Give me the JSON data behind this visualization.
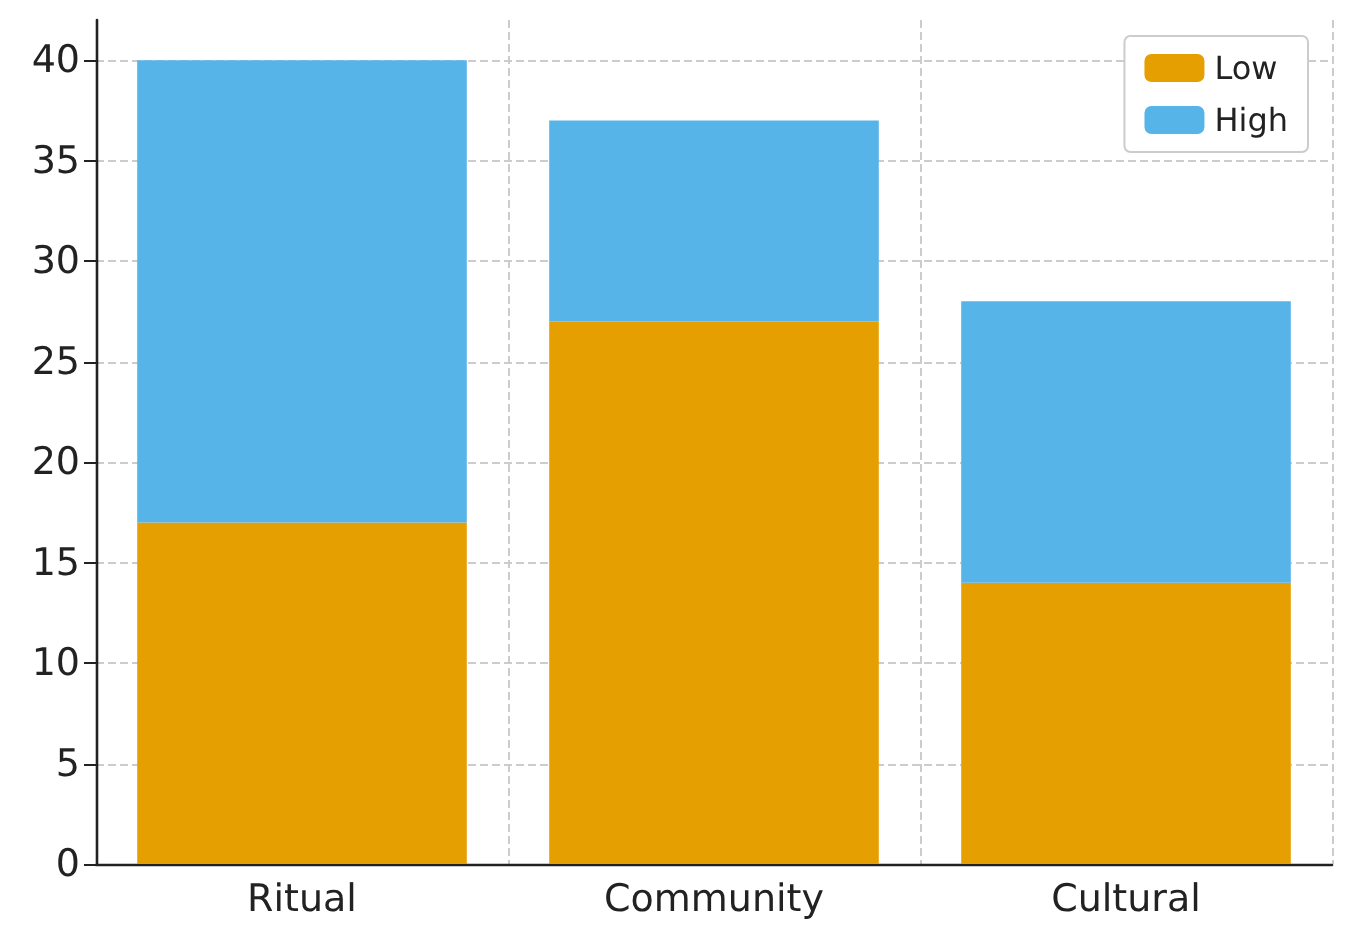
{
  "chart_data": {
    "type": "bar",
    "stacked": true,
    "categories": [
      "Ritual",
      "Community",
      "Cultural"
    ],
    "series": [
      {
        "name": "Low",
        "color": "#e69f00",
        "values": [
          17,
          27,
          14
        ]
      },
      {
        "name": "High",
        "color": "#56b4e9",
        "values": [
          23,
          10,
          14
        ]
      }
    ],
    "ylim": [
      0,
      42
    ],
    "yticks": [
      0,
      5,
      10,
      15,
      20,
      25,
      30,
      35,
      40
    ],
    "grid": true,
    "legend": "top right"
  }
}
